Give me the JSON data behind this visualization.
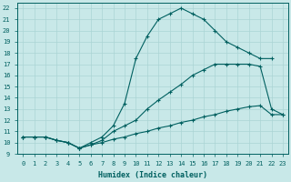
{
  "xlabel": "Humidex (Indice chaleur)",
  "xlim": [
    -0.5,
    23.5
  ],
  "ylim": [
    9,
    22.5
  ],
  "xticks": [
    0,
    1,
    2,
    3,
    4,
    5,
    6,
    7,
    8,
    9,
    10,
    11,
    12,
    13,
    14,
    15,
    16,
    17,
    18,
    19,
    20,
    21,
    22,
    23
  ],
  "yticks": [
    9,
    10,
    11,
    12,
    13,
    14,
    15,
    16,
    17,
    18,
    19,
    20,
    21,
    22
  ],
  "bg_color": "#c8e8e8",
  "grid_color": "#aad4d4",
  "line_color": "#006060",
  "curves": [
    {
      "x": [
        0,
        1,
        2,
        3,
        4,
        5,
        6,
        7,
        8,
        9,
        10,
        11,
        12,
        13,
        14,
        15,
        16,
        17,
        18,
        19,
        20,
        21,
        22
      ],
      "y": [
        10.5,
        10.5,
        10.5,
        10.2,
        10.0,
        9.5,
        10.0,
        10.5,
        11.5,
        13.5,
        17.5,
        19.5,
        21.0,
        21.5,
        22.0,
        21.5,
        21.0,
        20.0,
        19.0,
        18.5,
        18.0,
        17.5,
        17.5
      ]
    },
    {
      "x": [
        0,
        1,
        2,
        3,
        4,
        5,
        6,
        7,
        8,
        9,
        10,
        11,
        12,
        13,
        14,
        15,
        16,
        17,
        18,
        19,
        20,
        21,
        22,
        23
      ],
      "y": [
        10.5,
        10.5,
        10.5,
        10.2,
        10.0,
        9.5,
        9.8,
        10.2,
        11.0,
        11.5,
        12.0,
        13.0,
        13.8,
        14.5,
        15.2,
        16.0,
        16.5,
        17.0,
        17.0,
        17.0,
        17.0,
        16.8,
        13.0,
        12.5
      ]
    },
    {
      "x": [
        0,
        1,
        2,
        3,
        4,
        5,
        6,
        7,
        8,
        9,
        10,
        11,
        12,
        13,
        14,
        15,
        16,
        17,
        18,
        19,
        20,
        21,
        22,
        23
      ],
      "y": [
        10.5,
        10.5,
        10.5,
        10.2,
        10.0,
        9.5,
        9.8,
        10.0,
        10.3,
        10.5,
        10.8,
        11.0,
        11.3,
        11.5,
        11.8,
        12.0,
        12.3,
        12.5,
        12.8,
        13.0,
        13.2,
        13.3,
        12.5,
        12.5
      ]
    }
  ]
}
